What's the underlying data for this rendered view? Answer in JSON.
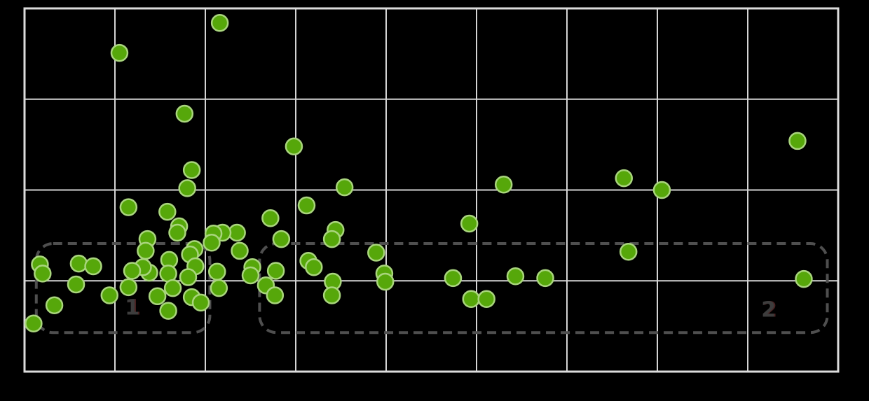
{
  "chart_data": {
    "type": "scatter",
    "title": "",
    "xlabel": "",
    "ylabel": "",
    "xlim": [
      0,
      9
    ],
    "ylim": [
      0,
      4
    ],
    "grid": true,
    "x_gridline_step": 1,
    "y_gridline_step": 1,
    "tick_labels_visible": false,
    "legend": "none",
    "series_name": "points",
    "points": [
      [
        2.16,
        3.84
      ],
      [
        1.05,
        3.51
      ],
      [
        1.77,
        2.84
      ],
      [
        2.98,
        2.48
      ],
      [
        8.55,
        2.54
      ],
      [
        1.85,
        2.22
      ],
      [
        1.8,
        2.02
      ],
      [
        3.54,
        2.03
      ],
      [
        5.3,
        2.06
      ],
      [
        6.63,
        2.13
      ],
      [
        7.05,
        2.0
      ],
      [
        1.15,
        1.81
      ],
      [
        1.58,
        1.76
      ],
      [
        3.12,
        1.83
      ],
      [
        2.72,
        1.69
      ],
      [
        1.71,
        1.6
      ],
      [
        4.92,
        1.63
      ],
      [
        2.35,
        1.53
      ],
      [
        3.44,
        1.56
      ],
      [
        3.4,
        1.46
      ],
      [
        2.84,
        1.46
      ],
      [
        1.69,
        1.53
      ],
      [
        2.19,
        1.53
      ],
      [
        2.09,
        1.52
      ],
      [
        2.07,
        1.42
      ],
      [
        1.36,
        1.46
      ],
      [
        2.38,
        1.33
      ],
      [
        6.68,
        1.32
      ],
      [
        3.89,
        1.31
      ],
      [
        1.34,
        1.33
      ],
      [
        1.88,
        1.35
      ],
      [
        1.83,
        1.29
      ],
      [
        1.89,
        1.16
      ],
      [
        1.81,
        1.04
      ],
      [
        1.6,
        1.23
      ],
      [
        1.59,
        1.08
      ],
      [
        1.38,
        1.09
      ],
      [
        1.31,
        1.15
      ],
      [
        1.19,
        1.11
      ],
      [
        1.64,
        0.92
      ],
      [
        1.47,
        0.83
      ],
      [
        1.85,
        0.82
      ],
      [
        1.95,
        0.76
      ],
      [
        2.15,
        0.92
      ],
      [
        2.13,
        1.1
      ],
      [
        1.59,
        0.67
      ],
      [
        1.15,
        0.93
      ],
      [
        0.94,
        0.84
      ],
      [
        8.62,
        1.02
      ],
      [
        0.17,
        1.18
      ],
      [
        0.2,
        1.08
      ],
      [
        0.6,
        1.19
      ],
      [
        0.76,
        1.16
      ],
      [
        0.57,
        0.96
      ],
      [
        0.33,
        0.73
      ],
      [
        0.1,
        0.53
      ],
      [
        3.98,
        1.08
      ],
      [
        3.99,
        0.99
      ],
      [
        4.74,
        1.03
      ],
      [
        4.94,
        0.8
      ],
      [
        5.11,
        0.8
      ],
      [
        5.43,
        1.05
      ],
      [
        5.76,
        1.03
      ],
      [
        2.52,
        1.15
      ],
      [
        2.5,
        1.06
      ],
      [
        2.78,
        1.11
      ],
      [
        2.67,
        0.95
      ],
      [
        2.77,
        0.84
      ],
      [
        3.14,
        1.22
      ],
      [
        3.2,
        1.15
      ],
      [
        3.41,
        0.99
      ],
      [
        3.4,
        0.84
      ]
    ],
    "annotations": [
      {
        "label": "1",
        "x0": 0.13,
        "x1": 2.05,
        "y0": 0.43,
        "y1": 1.41,
        "label_x": 1.19,
        "label_y": 0.7
      },
      {
        "label": "2",
        "x0": 2.6,
        "x1": 8.88,
        "y0": 0.43,
        "y1": 1.41,
        "label_x": 8.23,
        "label_y": 0.68
      }
    ],
    "colors": {
      "background": "#000000",
      "grid_line": "#d4d4d4",
      "plot_border": "#dcdcdc",
      "point_fill": "#56a70a",
      "point_stroke": "#a9d57d",
      "group_outline": "#4f4f4f",
      "group_label": "#3d3d3d",
      "group_label_shadow": "#4a2323"
    }
  }
}
